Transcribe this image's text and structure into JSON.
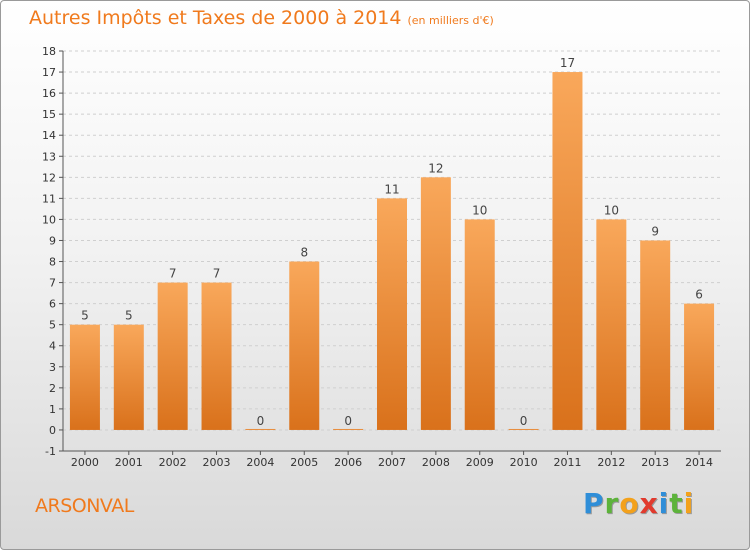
{
  "title": "Autres Impôts et Taxes de 2000 à 2014",
  "title_unit": "(en milliers d'€)",
  "commune": "ARSONVAL",
  "logo": {
    "text": "Proxiti",
    "letters": [
      "P",
      "r",
      "o",
      "x",
      "i",
      "t",
      "i"
    ]
  },
  "colors": {
    "bar_top": "#f9a85b",
    "bar_bottom": "#d9711b",
    "accent": "#f07a1d"
  },
  "chart_data": {
    "type": "bar",
    "categories": [
      "2000",
      "2001",
      "2002",
      "2003",
      "2004",
      "2005",
      "2006",
      "2007",
      "2008",
      "2009",
      "2010",
      "2011",
      "2012",
      "2013",
      "2014"
    ],
    "values": [
      5,
      5,
      7,
      7,
      0,
      8,
      0,
      11,
      12,
      10,
      0,
      17,
      10,
      9,
      6
    ],
    "data_labels": [
      "5",
      "5",
      "7",
      "7",
      "0",
      "8",
      "0",
      "11",
      "12",
      "10",
      "0",
      "17",
      "10",
      "9",
      "6"
    ],
    "yticks": [
      -1,
      0,
      1,
      2,
      3,
      4,
      5,
      6,
      7,
      8,
      9,
      10,
      11,
      12,
      13,
      14,
      15,
      16,
      17,
      18
    ],
    "ytick_labels": [
      "-1",
      "0",
      "1",
      "2",
      "3",
      "4",
      "5",
      "6",
      "7",
      "8",
      "9",
      "10",
      "11",
      "12",
      "13",
      "14",
      "15",
      "16",
      "17",
      "18"
    ],
    "ylim": [
      -1,
      18
    ],
    "grid": true
  }
}
